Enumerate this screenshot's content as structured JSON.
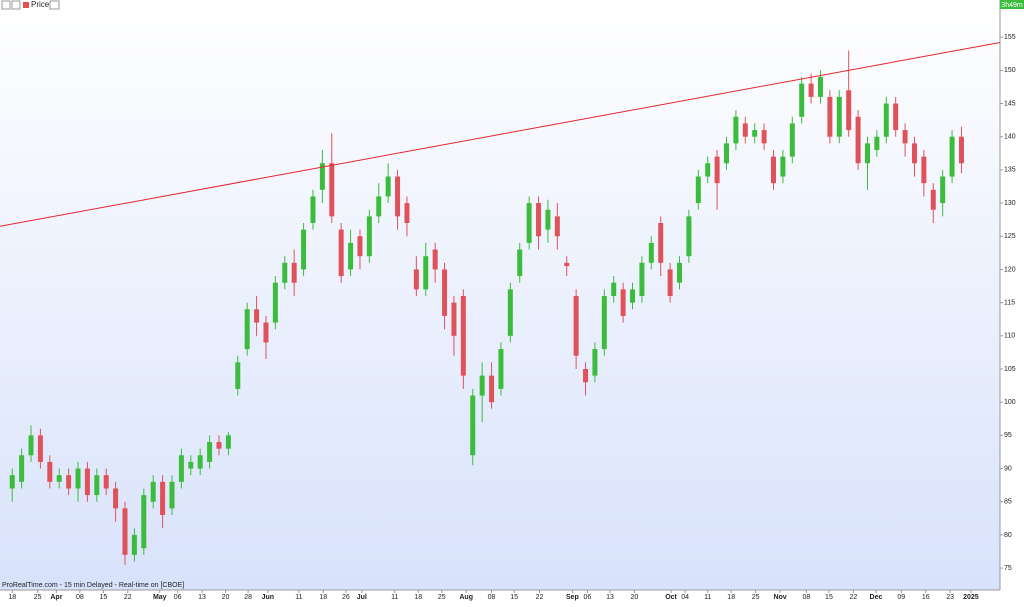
{
  "chart_data": {
    "type": "candlestick",
    "legend_label": "Price",
    "timer": "3h49m",
    "footer": "ProRealTime.com - 15 min Delayed - Real-time on [CBOE]",
    "up_color": "#3cbc3c",
    "down_color": "#e0525a",
    "open": [
      87,
      88,
      92,
      95,
      91,
      88,
      89,
      87,
      90,
      86,
      89,
      87,
      84,
      77,
      78,
      85,
      88,
      84,
      88,
      90,
      90,
      91,
      94,
      93,
      102,
      108,
      114,
      112,
      112,
      118,
      121,
      120,
      127,
      132,
      136,
      126,
      120,
      125,
      122,
      128,
      131,
      134,
      130,
      120,
      117,
      123,
      120,
      115,
      116,
      92,
      101,
      104,
      102,
      110,
      119,
      124,
      130,
      126,
      128,
      121,
      116,
      105,
      104,
      108,
      116,
      117,
      115,
      116,
      121,
      127,
      120,
      118,
      122,
      130,
      134,
      137,
      136,
      139,
      142,
      140,
      141,
      137,
      134,
      137,
      143,
      148,
      146,
      146,
      140,
      147,
      143,
      136,
      138,
      140,
      145,
      141,
      139,
      137,
      132,
      130,
      134,
      140
    ],
    "high": [
      90,
      93,
      96.5,
      96,
      92,
      90,
      90,
      91,
      91,
      90,
      90,
      88,
      85,
      81,
      87,
      89,
      89,
      89,
      93,
      92,
      93,
      95,
      95,
      95.5,
      107,
      115,
      116,
      113,
      119,
      122,
      123,
      127,
      132,
      138,
      140.5,
      127,
      126,
      126,
      129,
      133,
      136,
      135,
      131,
      122,
      124,
      124,
      121,
      116,
      117,
      102,
      106,
      106,
      109,
      118,
      124,
      131,
      131,
      130.5,
      130,
      122,
      117,
      106,
      109,
      117,
      119,
      118,
      118,
      122,
      125,
      128,
      121,
      122,
      129,
      135,
      137,
      138,
      140,
      144,
      143,
      142,
      142,
      138,
      138,
      143,
      149,
      149.5,
      150,
      147,
      147,
      153,
      144,
      140,
      141,
      146,
      146,
      142,
      140,
      138,
      133,
      135,
      141,
      141.5
    ],
    "low": [
      85,
      87,
      91,
      90,
      87,
      87,
      86,
      85,
      85,
      85,
      86,
      82,
      75.5,
      76,
      77,
      84,
      81,
      83,
      87,
      89,
      89,
      90,
      92,
      92,
      101,
      107,
      110,
      106.5,
      111,
      117,
      116,
      119,
      126,
      130,
      127,
      118,
      119,
      120,
      121,
      127,
      130,
      126,
      125,
      116,
      116,
      118,
      111,
      107,
      102,
      90.5,
      97,
      99,
      101,
      109,
      118,
      123,
      123,
      124,
      123,
      119,
      105,
      101,
      103,
      107,
      115,
      112,
      114,
      115,
      120,
      119,
      115,
      117,
      121,
      129,
      133,
      129,
      135,
      138,
      139,
      139,
      138,
      132,
      133,
      136,
      142,
      145,
      145,
      139,
      139,
      140,
      135,
      132,
      137,
      139,
      140,
      137,
      134,
      131,
      127,
      128,
      133,
      134.5
    ],
    "close": [
      89,
      92,
      95,
      91,
      88,
      89,
      87,
      90,
      86,
      89,
      87,
      84,
      77,
      80,
      86,
      88,
      83,
      88,
      92,
      91,
      92,
      94,
      93,
      95,
      106,
      114,
      112,
      109,
      118,
      121,
      118,
      126,
      131,
      136,
      128,
      119,
      124,
      122,
      128,
      131,
      134,
      128,
      127,
      117,
      122,
      120,
      113,
      110,
      104,
      101,
      104,
      100,
      108,
      117,
      123,
      130,
      125,
      129,
      125,
      120.5,
      107,
      103,
      108,
      116,
      118,
      113,
      117,
      121,
      124,
      121,
      116,
      121,
      128,
      134,
      136,
      133,
      139,
      143,
      140,
      141,
      139,
      133,
      137,
      142,
      148,
      146,
      149,
      140,
      146,
      141,
      136,
      139,
      140,
      145,
      141,
      139,
      136,
      133,
      129,
      134,
      140,
      136
    ],
    "xlim": [
      -1.3,
      105.1
    ],
    "xticks": [
      {
        "value": 0,
        "label": "18"
      },
      {
        "value": 2.7,
        "label": "25"
      },
      {
        "value": 4.7,
        "label": "Apr",
        "bold": true
      },
      {
        "value": 7.2,
        "label": "08"
      },
      {
        "value": 9.7,
        "label": "15"
      },
      {
        "value": 12.3,
        "label": "22"
      },
      {
        "value": 15.7,
        "label": "May",
        "bold": true
      },
      {
        "value": 17.6,
        "label": "06"
      },
      {
        "value": 20.2,
        "label": "13"
      },
      {
        "value": 22.7,
        "label": "20"
      },
      {
        "value": 25.1,
        "label": "28"
      },
      {
        "value": 27.2,
        "label": "Jun",
        "bold": true
      },
      {
        "value": 30.5,
        "label": "11"
      },
      {
        "value": 33.1,
        "label": "18"
      },
      {
        "value": 35.5,
        "label": "26"
      },
      {
        "value": 37.2,
        "label": "Jul",
        "bold": true
      },
      {
        "value": 40.7,
        "label": "11"
      },
      {
        "value": 43.2,
        "label": "18"
      },
      {
        "value": 45.7,
        "label": "25"
      },
      {
        "value": 48.3,
        "label": "Aug",
        "bold": true
      },
      {
        "value": 51.0,
        "label": "08"
      },
      {
        "value": 53.4,
        "label": "15"
      },
      {
        "value": 56.1,
        "label": "22"
      },
      {
        "value": 59.6,
        "label": "Sep",
        "bold": true
      },
      {
        "value": 61.2,
        "label": "06"
      },
      {
        "value": 63.6,
        "label": "13"
      },
      {
        "value": 66.2,
        "label": "20"
      },
      {
        "value": 70.1,
        "label": "Oct",
        "bold": true
      },
      {
        "value": 71.6,
        "label": "04"
      },
      {
        "value": 74.0,
        "label": "11"
      },
      {
        "value": 76.5,
        "label": "18"
      },
      {
        "value": 79.1,
        "label": "25"
      },
      {
        "value": 81.7,
        "label": "Nov",
        "bold": true
      },
      {
        "value": 84.5,
        "label": "08"
      },
      {
        "value": 86.9,
        "label": "15"
      },
      {
        "value": 89.5,
        "label": "22"
      },
      {
        "value": 91.9,
        "label": "Dec",
        "bold": true
      },
      {
        "value": 94.6,
        "label": "09"
      },
      {
        "value": 97.2,
        "label": "16"
      },
      {
        "value": 99.8,
        "label": "23"
      },
      {
        "value": 102.0,
        "label": "2025",
        "bold": true
      }
    ],
    "ylim": [
      71.7,
      160.6
    ],
    "yticks": [
      75,
      80,
      85,
      90,
      95,
      100,
      105,
      110,
      115,
      120,
      125,
      130,
      135,
      140,
      145,
      150,
      155
    ],
    "trendline": {
      "x": [
        -1.3,
        105.1
      ],
      "y": [
        126.5,
        154.2
      ],
      "color": "#e8252c"
    }
  }
}
